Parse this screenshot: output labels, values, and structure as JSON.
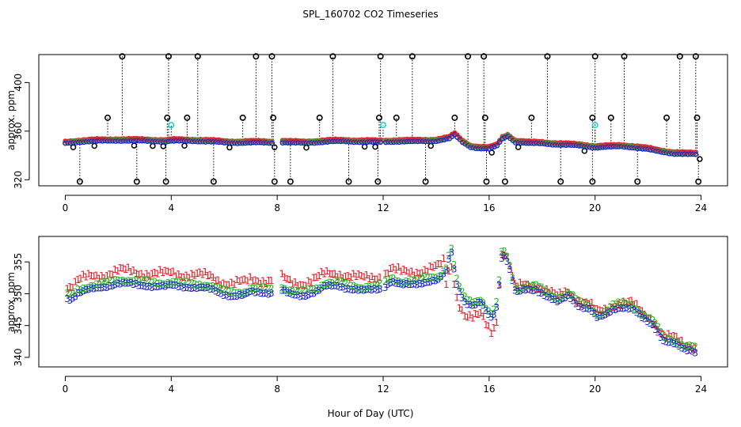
{
  "figure": {
    "title": "SPL_160702  CO2 Timeseries",
    "xlabel": "Hour of Day (UTC)"
  },
  "colors": {
    "series1": "#e8212a",
    "series2": "#22bb22",
    "series3": "#1e22d0",
    "flag_black": "#000000",
    "flag_cyan": "#20d0d0",
    "axis": "#000000"
  },
  "chart_data": [
    {
      "type": "scatter",
      "title": "SPL_160702  CO2 Timeseries",
      "ylabel": "approx. ppm",
      "xlim": [
        -1,
        25
      ],
      "ylim": [
        315,
        423
      ],
      "xticks": [
        0,
        4,
        8,
        12,
        16,
        20,
        24
      ],
      "yticks": [
        320,
        360,
        400
      ],
      "grid": false,
      "series": [
        {
          "name": "1",
          "marker": "1",
          "color": "red"
        },
        {
          "name": "2",
          "marker": "2",
          "color": "green"
        },
        {
          "name": "3",
          "marker": "3",
          "color": "blue"
        }
      ],
      "anchors": [
        [
          0,
          350
        ],
        [
          0.5,
          351.2
        ],
        [
          1,
          351.8
        ],
        [
          1.5,
          352
        ],
        [
          2,
          352.3
        ],
        [
          3,
          352
        ],
        [
          3.8,
          351.5
        ],
        [
          4,
          352
        ],
        [
          4.5,
          352
        ],
        [
          5,
          351.8
        ],
        [
          5.5,
          351.4
        ],
        [
          6,
          350.6
        ],
        [
          6.5,
          350.4
        ],
        [
          7.2,
          350.6
        ],
        [
          7.8,
          350.4
        ],
        [
          8,
          351
        ],
        [
          8.5,
          350.5
        ],
        [
          9,
          350.3
        ],
        [
          9.5,
          350.8
        ],
        [
          10,
          351.5
        ],
        [
          10.5,
          351.7
        ],
        [
          11,
          351.3
        ],
        [
          11.5,
          351.2
        ],
        [
          12,
          351
        ],
        [
          12.5,
          351.5
        ],
        [
          13,
          351.5
        ],
        [
          13.5,
          351.7
        ],
        [
          14,
          352
        ],
        [
          14.5,
          354
        ],
        [
          14.7,
          357
        ],
        [
          15,
          351
        ],
        [
          15.3,
          347
        ],
        [
          15.6,
          346
        ],
        [
          16,
          345.5
        ],
        [
          16.3,
          348
        ],
        [
          16.5,
          354
        ],
        [
          16.7,
          356
        ],
        [
          17,
          351
        ],
        [
          17.5,
          350
        ],
        [
          18,
          350
        ],
        [
          18.5,
          349
        ],
        [
          19,
          348.5
        ],
        [
          19.5,
          348
        ],
        [
          20,
          346.5
        ],
        [
          20.5,
          347
        ],
        [
          21,
          347.5
        ],
        [
          21.5,
          346.5
        ],
        [
          22,
          345
        ],
        [
          22.5,
          343
        ],
        [
          23,
          341.5
        ],
        [
          23.5,
          341
        ],
        [
          23.7,
          341
        ]
      ],
      "gaps": [
        [
          7.85,
          8.1
        ],
        [
          11.9,
          12.0
        ]
      ],
      "flags_high": [
        2.15,
        3.9,
        5.0,
        7.2,
        7.8,
        10.1,
        11.9,
        13.1,
        15.2,
        15.8,
        18.2,
        20.0,
        21.1,
        23.2,
        23.8
      ],
      "flags_mid": [
        1.6,
        3.85,
        4.6,
        6.7,
        7.85,
        9.6,
        11.85,
        12.5,
        14.7,
        15.85,
        17.6,
        19.9,
        20.6,
        22.7,
        23.85
      ],
      "flags_low": [
        0.55,
        2.7,
        3.8,
        5.6,
        7.9,
        8.5,
        10.7,
        11.8,
        13.6,
        15.9,
        16.6,
        18.7,
        19.9,
        21.6,
        23.9
      ],
      "flags_cyan": [
        [
          4.0,
          365
        ],
        [
          12.0,
          365
        ],
        [
          20.0,
          365
        ]
      ],
      "flags_near": [
        0.3,
        1.1,
        2.6,
        3.3,
        3.7,
        4.5,
        6.2,
        7.9,
        9.1,
        11.3,
        11.7,
        13.8,
        16.1,
        17.1,
        19.6,
        23.95
      ]
    },
    {
      "type": "scatter",
      "ylabel": "approx. ppm",
      "xlabel": "Hour of Day (UTC)",
      "xlim": [
        -1,
        25
      ],
      "ylim": [
        338.5,
        359
      ],
      "xticks": [
        0,
        4,
        8,
        12,
        16,
        20,
        24
      ],
      "yticks": [
        340,
        345,
        350,
        355
      ],
      "grid": false,
      "series": [
        {
          "name": "1",
          "marker": "1",
          "color": "red"
        },
        {
          "name": "2",
          "marker": "2",
          "color": "green"
        },
        {
          "name": "3",
          "marker": "3",
          "color": "blue"
        }
      ],
      "anchors": [
        [
          0,
          349.5
        ],
        [
          0.2,
          349
        ],
        [
          0.5,
          350
        ],
        [
          1,
          350.6
        ],
        [
          1.5,
          351
        ],
        [
          2,
          351.5
        ],
        [
          2.5,
          351.4
        ],
        [
          3,
          351.2
        ],
        [
          3.5,
          351
        ],
        [
          3.8,
          351
        ],
        [
          4,
          351.2
        ],
        [
          4.5,
          351
        ],
        [
          5,
          350.8
        ],
        [
          5.5,
          350.6
        ],
        [
          6,
          349.8
        ],
        [
          6.3,
          349.5
        ],
        [
          6.8,
          349.6
        ],
        [
          7,
          350.2
        ],
        [
          7.5,
          350.1
        ],
        [
          7.8,
          350
        ],
        [
          8.1,
          350.5
        ],
        [
          8.5,
          349.8
        ],
        [
          9,
          349.6
        ],
        [
          9.5,
          350.2
        ],
        [
          9.8,
          351
        ],
        [
          10.3,
          351.2
        ],
        [
          10.8,
          350.6
        ],
        [
          11.2,
          350.3
        ],
        [
          11.7,
          350.6
        ],
        [
          12,
          350.8
        ],
        [
          12.3,
          351.8
        ],
        [
          12.7,
          351.2
        ],
        [
          13.2,
          351.4
        ],
        [
          13.7,
          351.8
        ],
        [
          14.1,
          352
        ],
        [
          14.4,
          353.5
        ],
        [
          14.55,
          357
        ],
        [
          14.8,
          351
        ],
        [
          15.1,
          348.5
        ],
        [
          15.4,
          348
        ],
        [
          15.7,
          348.5
        ],
        [
          15.9,
          347
        ],
        [
          16.1,
          346
        ],
        [
          16.3,
          348
        ],
        [
          16.5,
          356.5
        ],
        [
          16.7,
          355
        ],
        [
          17,
          350
        ],
        [
          17.4,
          350.5
        ],
        [
          17.8,
          350.5
        ],
        [
          18.2,
          349.5
        ],
        [
          18.6,
          348.5
        ],
        [
          19,
          349.5
        ],
        [
          19.4,
          348
        ],
        [
          19.8,
          347.5
        ],
        [
          20.1,
          346
        ],
        [
          20.4,
          346.5
        ],
        [
          20.7,
          347.5
        ],
        [
          21,
          347.8
        ],
        [
          21.4,
          347.5
        ],
        [
          21.8,
          346
        ],
        [
          22.2,
          345
        ],
        [
          22.6,
          342.5
        ],
        [
          23,
          342
        ],
        [
          23.4,
          341
        ],
        [
          23.7,
          341
        ],
        [
          23.85,
          340.5
        ]
      ],
      "gaps": [
        [
          7.85,
          8.1
        ],
        [
          11.9,
          12.0
        ]
      ]
    }
  ]
}
